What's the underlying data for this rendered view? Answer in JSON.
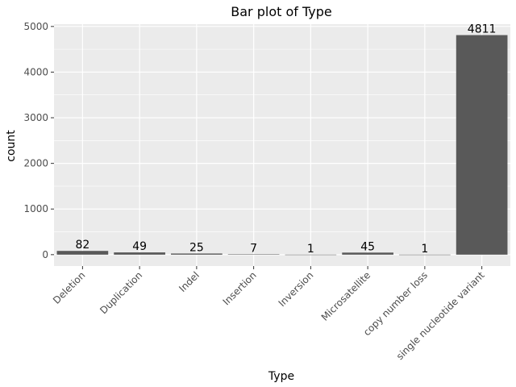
{
  "chart_data": {
    "type": "bar",
    "title": "Bar plot of Type",
    "xlabel": "Type",
    "ylabel": "count",
    "categories": [
      "Deletion",
      "Duplication",
      "Indel",
      "Insertion",
      "Inversion",
      "Microsatellite",
      "copy number loss",
      "single nucleotide variant"
    ],
    "values": [
      82,
      49,
      25,
      7,
      1,
      45,
      1,
      4811
    ],
    "data_labels": [
      "82",
      "49",
      "25",
      "7",
      "1",
      "45",
      "1",
      "4811"
    ],
    "yticks": [
      0,
      1000,
      2000,
      3000,
      4000,
      5000
    ],
    "ylim": [
      -250,
      5050
    ],
    "grid": true,
    "colors": {
      "panel_background": "#ebebeb",
      "grid": "#ffffff",
      "bar": "#595959"
    }
  }
}
